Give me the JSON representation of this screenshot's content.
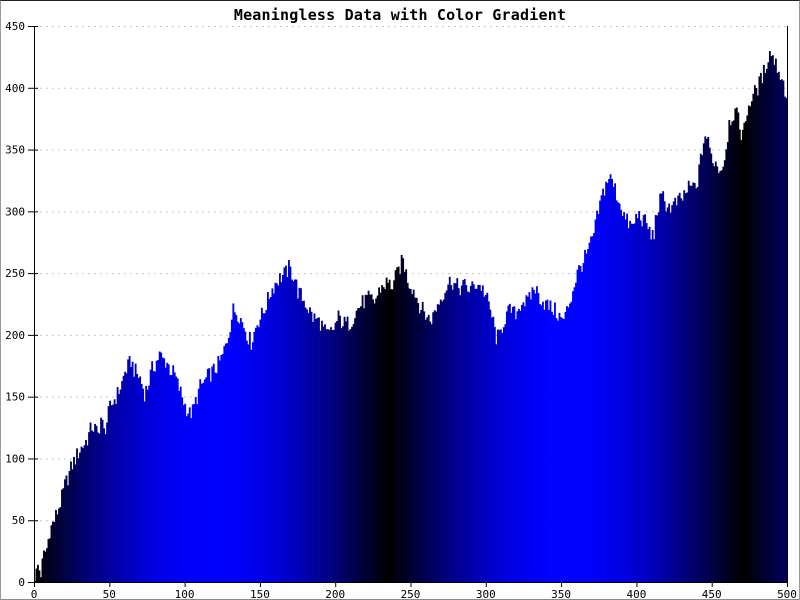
{
  "page": {
    "background": "#ffffff"
  },
  "chart_data": {
    "type": "bar",
    "title": "Meaningless Data with Color Gradient",
    "xlabel": "",
    "ylabel": "",
    "xlim": [
      0,
      500
    ],
    "ylim": [
      0,
      450
    ],
    "x_ticks": [
      0,
      50,
      100,
      150,
      200,
      250,
      300,
      350,
      400,
      450,
      500
    ],
    "y_ticks": [
      0,
      50,
      100,
      150,
      200,
      250,
      300,
      350,
      400,
      450
    ],
    "grid": "horizontal-dotted",
    "grid_color": "#b4b4b4",
    "axis_color": "#000000",
    "tick_label_color": "#000000",
    "bar_color_rule": "rgb(0, 0, 255*abs(sin(x/75)))",
    "bright_color": "#0000ff",
    "dark_color": "#000000",
    "bright_band_centers_x": [
      118,
      353
    ],
    "dark_band_centers_x": [
      0,
      236,
      471
    ],
    "noise_amplitude": 7,
    "points_per_unit": 1,
    "series_anchors": [
      [
        0,
        2
      ],
      [
        2,
        13
      ],
      [
        4,
        7
      ],
      [
        6,
        22
      ],
      [
        8,
        27
      ],
      [
        10,
        42
      ],
      [
        13,
        50
      ],
      [
        15,
        57
      ],
      [
        18,
        68
      ],
      [
        20,
        78
      ],
      [
        23,
        88
      ],
      [
        25,
        95
      ],
      [
        27,
        100
      ],
      [
        30,
        107
      ],
      [
        33,
        112
      ],
      [
        35,
        116
      ],
      [
        38,
        126
      ],
      [
        40,
        124
      ],
      [
        42,
        119
      ],
      [
        44,
        133
      ],
      [
        46,
        121
      ],
      [
        48,
        130
      ],
      [
        50,
        141
      ],
      [
        53,
        148
      ],
      [
        55,
        152
      ],
      [
        58,
        161
      ],
      [
        60,
        170
      ],
      [
        62,
        174
      ],
      [
        64,
        179
      ],
      [
        66,
        172
      ],
      [
        68,
        168
      ],
      [
        70,
        165
      ],
      [
        73,
        153
      ],
      [
        75,
        158
      ],
      [
        78,
        172
      ],
      [
        80,
        176
      ],
      [
        83,
        184
      ],
      [
        85,
        180
      ],
      [
        88,
        178
      ],
      [
        90,
        172
      ],
      [
        93,
        168
      ],
      [
        95,
        160
      ],
      [
        98,
        150
      ],
      [
        100,
        143
      ],
      [
        103,
        136
      ],
      [
        105,
        138
      ],
      [
        108,
        150
      ],
      [
        110,
        158
      ],
      [
        113,
        162
      ],
      [
        115,
        166
      ],
      [
        118,
        170
      ],
      [
        120,
        172
      ],
      [
        123,
        178
      ],
      [
        125,
        183
      ],
      [
        128,
        196
      ],
      [
        130,
        208
      ],
      [
        132,
        220
      ],
      [
        134,
        219
      ],
      [
        136,
        216
      ],
      [
        138,
        210
      ],
      [
        140,
        205
      ],
      [
        142,
        198
      ],
      [
        144,
        194
      ],
      [
        146,
        202
      ],
      [
        148,
        210
      ],
      [
        150,
        214
      ],
      [
        152,
        218
      ],
      [
        155,
        228
      ],
      [
        157,
        235
      ],
      [
        160,
        242
      ],
      [
        162,
        245
      ],
      [
        165,
        248
      ],
      [
        167,
        250
      ],
      [
        169,
        254
      ],
      [
        171,
        250
      ],
      [
        173,
        246
      ],
      [
        175,
        235
      ],
      [
        178,
        230
      ],
      [
        180,
        226
      ],
      [
        183,
        219
      ],
      [
        185,
        214
      ],
      [
        188,
        212
      ],
      [
        190,
        210
      ],
      [
        192,
        205
      ],
      [
        194,
        200
      ],
      [
        196,
        201
      ],
      [
        198,
        203
      ],
      [
        200,
        208
      ],
      [
        202,
        214
      ],
      [
        204,
        211
      ],
      [
        206,
        209
      ],
      [
        208,
        209
      ],
      [
        210,
        210
      ],
      [
        212,
        215
      ],
      [
        214,
        219
      ],
      [
        216,
        223
      ],
      [
        218,
        226
      ],
      [
        220,
        228
      ],
      [
        222,
        229
      ],
      [
        224,
        228
      ],
      [
        226,
        227
      ],
      [
        228,
        232
      ],
      [
        230,
        238
      ],
      [
        232,
        240
      ],
      [
        234,
        242
      ],
      [
        236,
        241
      ],
      [
        238,
        240
      ],
      [
        240,
        246
      ],
      [
        243,
        255
      ],
      [
        245,
        261
      ],
      [
        247,
        250
      ],
      [
        249,
        242
      ],
      [
        251,
        239
      ],
      [
        253,
        234
      ],
      [
        255,
        227
      ],
      [
        257,
        222
      ],
      [
        259,
        218
      ],
      [
        261,
        215
      ],
      [
        263,
        212
      ],
      [
        265,
        215
      ],
      [
        267,
        222
      ],
      [
        269,
        227
      ],
      [
        271,
        232
      ],
      [
        273,
        237
      ],
      [
        275,
        241
      ],
      [
        277,
        245
      ],
      [
        279,
        241
      ],
      [
        281,
        239
      ],
      [
        283,
        238
      ],
      [
        285,
        240
      ],
      [
        287,
        239
      ],
      [
        289,
        237
      ],
      [
        291,
        238
      ],
      [
        293,
        241
      ],
      [
        295,
        241
      ],
      [
        297,
        239
      ],
      [
        299,
        235
      ],
      [
        301,
        228
      ],
      [
        303,
        220
      ],
      [
        305,
        210
      ],
      [
        307,
        198
      ],
      [
        309,
        198
      ],
      [
        311,
        207
      ],
      [
        313,
        214
      ],
      [
        315,
        218
      ],
      [
        317,
        220
      ],
      [
        319,
        217
      ],
      [
        321,
        219
      ],
      [
        323,
        225
      ],
      [
        325,
        228
      ],
      [
        327,
        226
      ],
      [
        329,
        228
      ],
      [
        331,
        236
      ],
      [
        333,
        238
      ],
      [
        335,
        232
      ],
      [
        337,
        229
      ],
      [
        339,
        226
      ],
      [
        341,
        224
      ],
      [
        343,
        222
      ],
      [
        345,
        221
      ],
      [
        347,
        218
      ],
      [
        349,
        215
      ],
      [
        351,
        211
      ],
      [
        353,
        215
      ],
      [
        355,
        224
      ],
      [
        357,
        231
      ],
      [
        359,
        241
      ],
      [
        361,
        250
      ],
      [
        363,
        255
      ],
      [
        366,
        262
      ],
      [
        369,
        270
      ],
      [
        372,
        282
      ],
      [
        375,
        300
      ],
      [
        378,
        315
      ],
      [
        380,
        322
      ],
      [
        382,
        328
      ],
      [
        384,
        324
      ],
      [
        386,
        318
      ],
      [
        388,
        310
      ],
      [
        390,
        305
      ],
      [
        393,
        293
      ],
      [
        396,
        289
      ],
      [
        398,
        287
      ],
      [
        400,
        295
      ],
      [
        402,
        297
      ],
      [
        404,
        294
      ],
      [
        406,
        291
      ],
      [
        408,
        288
      ],
      [
        410,
        279
      ],
      [
        412,
        283
      ],
      [
        414,
        300
      ],
      [
        416,
        308
      ],
      [
        418,
        311
      ],
      [
        420,
        306
      ],
      [
        422,
        304
      ],
      [
        424,
        303
      ],
      [
        426,
        306
      ],
      [
        428,
        308
      ],
      [
        430,
        309
      ],
      [
        432,
        313
      ],
      [
        434,
        317
      ],
      [
        437,
        320
      ],
      [
        440,
        319
      ],
      [
        442,
        332
      ],
      [
        444,
        350
      ],
      [
        446,
        362
      ],
      [
        448,
        355
      ],
      [
        450,
        345
      ],
      [
        452,
        341
      ],
      [
        454,
        337
      ],
      [
        456,
        334
      ],
      [
        458,
        338
      ],
      [
        460,
        352
      ],
      [
        462,
        372
      ],
      [
        464,
        378
      ],
      [
        466,
        380
      ],
      [
        468,
        374
      ],
      [
        470,
        364
      ],
      [
        472,
        366
      ],
      [
        474,
        382
      ],
      [
        476,
        389
      ],
      [
        478,
        394
      ],
      [
        480,
        398
      ],
      [
        482,
        403
      ],
      [
        484,
        409
      ],
      [
        486,
        416
      ],
      [
        488,
        426
      ],
      [
        490,
        429
      ],
      [
        492,
        422
      ],
      [
        494,
        417
      ],
      [
        496,
        411
      ],
      [
        498,
        403
      ],
      [
        500,
        394
      ]
    ]
  }
}
